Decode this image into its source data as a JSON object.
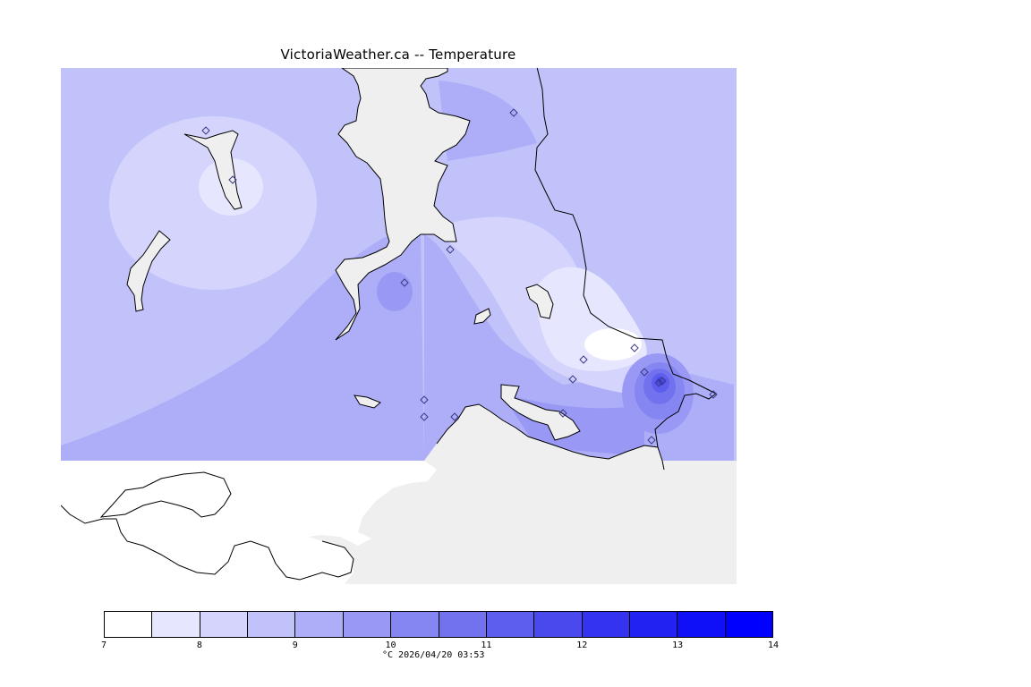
{
  "title": "VictoriaWeather.ca -- Temperature",
  "legend": {
    "unit_and_timestamp": "°C 2026/04/20 03:53",
    "tick_labels": [
      "7",
      "8",
      "9",
      "10",
      "11",
      "12",
      "13",
      "14"
    ],
    "bins": [
      {
        "from": 7.0,
        "to": 7.5,
        "color": "#ffffff"
      },
      {
        "from": 7.5,
        "to": 8.0,
        "color": "#e6e6ff"
      },
      {
        "from": 8.0,
        "to": 8.5,
        "color": "#d4d4fc"
      },
      {
        "from": 8.5,
        "to": 9.0,
        "color": "#c2c2fa"
      },
      {
        "from": 9.0,
        "to": 9.5,
        "color": "#adadf8"
      },
      {
        "from": 9.5,
        "to": 10.0,
        "color": "#9999f5"
      },
      {
        "from": 10.0,
        "to": 10.5,
        "color": "#8686f2"
      },
      {
        "from": 10.5,
        "to": 11.0,
        "color": "#7272ef"
      },
      {
        "from": 11.0,
        "to": 11.5,
        "color": "#5e5eee"
      },
      {
        "from": 11.5,
        "to": 12.0,
        "color": "#4949ee"
      },
      {
        "from": 12.0,
        "to": 12.5,
        "color": "#3434f0"
      },
      {
        "from": 12.5,
        "to": 13.0,
        "color": "#2222f3"
      },
      {
        "from": 13.0,
        "to": 13.5,
        "color": "#1010f8"
      },
      {
        "from": 13.5,
        "to": 14.0,
        "color": "#0000ff"
      }
    ]
  },
  "colors": {
    "land_background": "#efefef",
    "coastline": "#000000",
    "station_marker": "#3a3a8a"
  }
}
